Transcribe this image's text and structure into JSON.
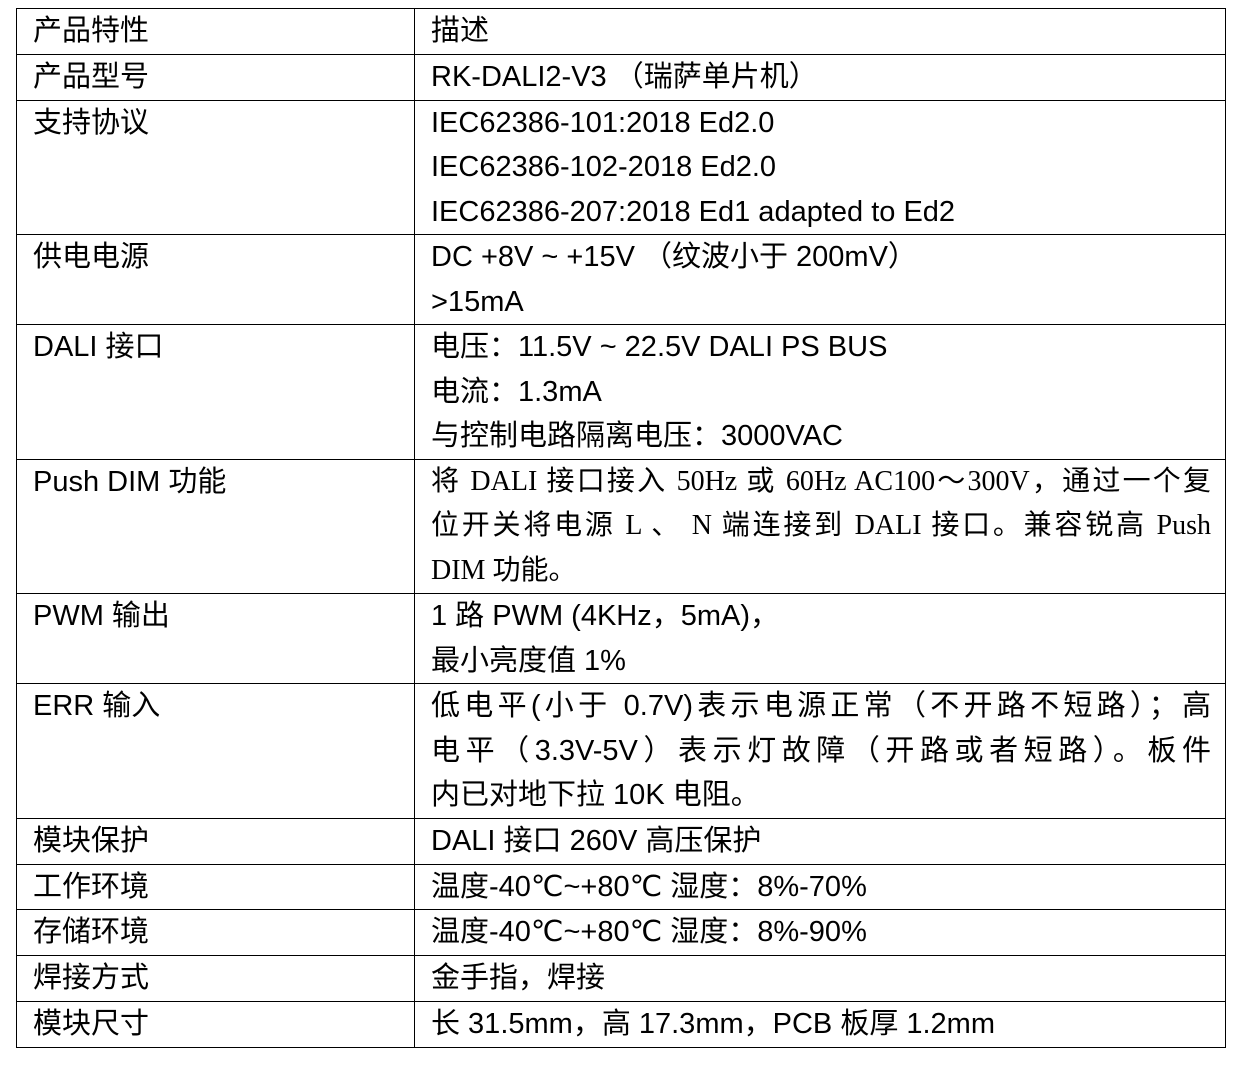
{
  "table": {
    "header": {
      "key": "产品特性",
      "value": "描述"
    },
    "rows": [
      {
        "key": "产品型号",
        "lines": [
          "RK-DALI2-V3 （瑞萨单片机）"
        ]
      },
      {
        "key": "支持协议",
        "lines": [
          "IEC62386-101:2018 Ed2.0",
          "IEC62386-102-2018 Ed2.0",
          "IEC62386-207:2018 Ed1 adapted to Ed2"
        ]
      },
      {
        "key": "供电电源",
        "lines": [
          "DC +8V ~ +15V （纹波小于 200mV）",
          ">15mA"
        ]
      },
      {
        "key": "DALI 接口",
        "lines": [
          "电压：11.5V ~ 22.5V DALI PS BUS",
          "电流：1.3mA",
          "与控制电路隔离电压：3000VAC"
        ]
      },
      {
        "key": "Push DIM 功能",
        "lines": [
          "将 DALI 接口接入 50Hz 或 60Hz AC100～300V，通过一个复",
          "位开关将电源 L 、 N 端连接到 DALI 接口。兼容锐高 Push",
          "DIM 功能。"
        ]
      },
      {
        "key": "PWM 输出",
        "lines": [
          "1 路 PWM (4KHz，5mA)，",
          "最小亮度值 1%"
        ]
      },
      {
        "key": "ERR 输入",
        "lines": [
          "低电平(小于 0.7V)表示电源正常（不开路不短路）；高",
          "电平（3.3V-5V）表示灯故障（开路或者短路）。板件",
          "内已对地下拉 10K 电阻。"
        ]
      },
      {
        "key": "模块保护",
        "lines": [
          "DALI 接口 260V 高压保护"
        ]
      },
      {
        "key": "工作环境",
        "lines": [
          "温度-40℃~+80℃ 湿度：8%-70%"
        ]
      },
      {
        "key": "存储环境",
        "lines": [
          "温度-40℃~+80℃ 湿度：8%-90%"
        ]
      },
      {
        "key": "焊接方式",
        "lines": [
          "金手指，焊接"
        ]
      },
      {
        "key": "模块尺寸",
        "lines": [
          "长 31.5mm，高 17.3mm，PCB 板厚 1.2mm"
        ]
      }
    ]
  }
}
